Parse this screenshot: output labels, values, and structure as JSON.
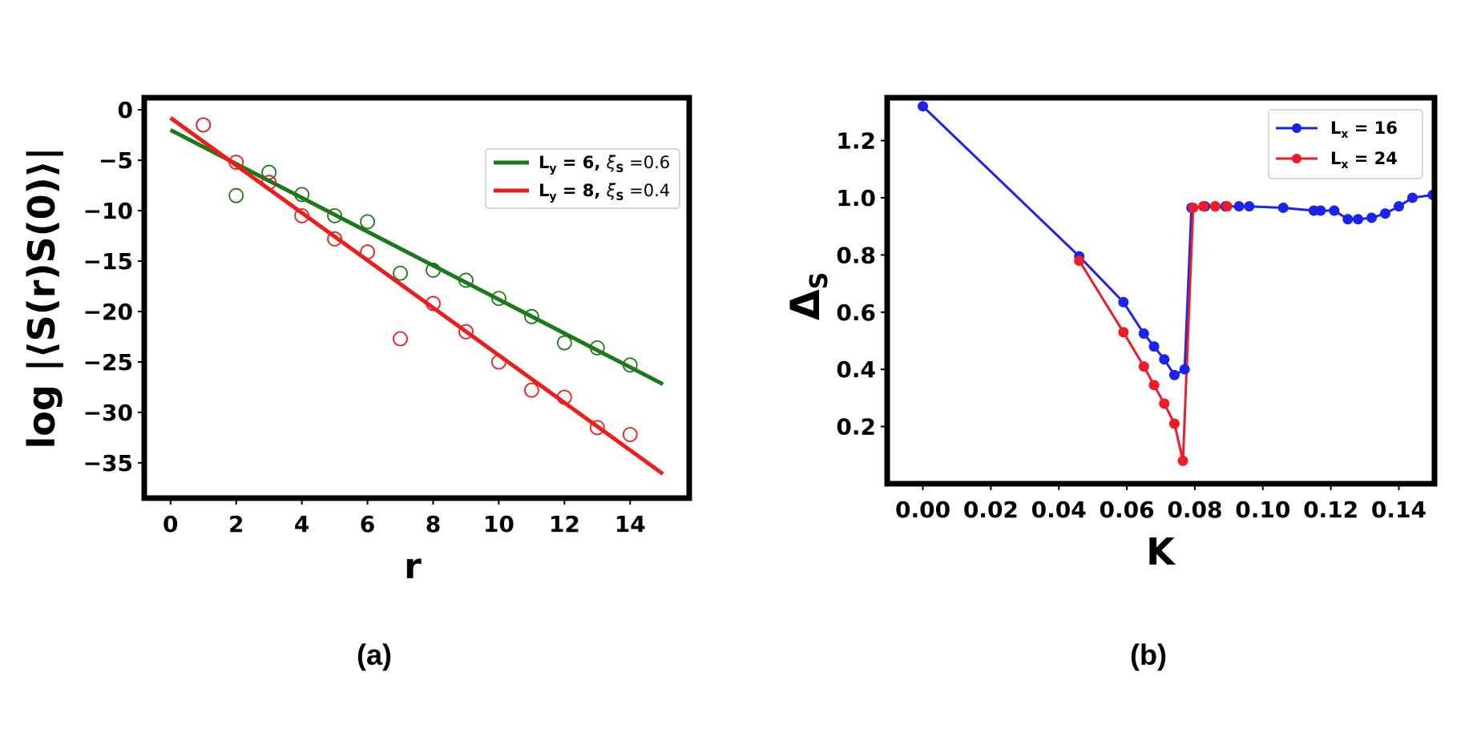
{
  "chart_data": [
    {
      "type": "scatter",
      "panel_label": "(a)",
      "xlabel": "r",
      "ylabel": "log |⟨S(r)S(0)⟩|",
      "xlim": [
        -0.8,
        15.8
      ],
      "ylim": [
        -38.5,
        1.2
      ],
      "xticks": [
        0,
        2,
        4,
        6,
        8,
        10,
        12,
        14
      ],
      "xtick_labels": [
        "0",
        "2",
        "4",
        "6",
        "8",
        "10",
        "12",
        "14"
      ],
      "yticks": [
        0,
        -5,
        -10,
        -15,
        -20,
        -25,
        -30,
        -35
      ],
      "ytick_labels": [
        "0",
        "−5",
        "−10",
        "−15",
        "−20",
        "−25",
        "−30",
        "−35"
      ],
      "grid": false,
      "legend_position": "upper-right",
      "series": [
        {
          "name": "L_y = 6, ξ_S = 0.6",
          "legend_main": "L",
          "legend_sub": "y",
          "legend_eq": " = 6, ",
          "legend_xi": "ξ",
          "legend_xi_sub": "S",
          "legend_val": " =0.6",
          "color": "#1a7a1a",
          "marker": "open-circle",
          "x": [
            1,
            2,
            3,
            4,
            5,
            6,
            7,
            8,
            9,
            10,
            11,
            12,
            13,
            14
          ],
          "y": [
            -1.5,
            -8.5,
            -6.2,
            -8.4,
            -10.5,
            -11.1,
            -16.2,
            -15.9,
            -16.9,
            -18.7,
            -20.5,
            -23.1,
            -23.6,
            -25.3
          ],
          "fit": {
            "x": [
              0,
              15
            ],
            "y": [
              -2.0,
              -27.2
            ]
          }
        },
        {
          "name": "L_y = 8, ξ_S = 0.4",
          "legend_main": "L",
          "legend_sub": "y",
          "legend_eq": " = 8, ",
          "legend_xi": "ξ",
          "legend_xi_sub": "S",
          "legend_val": " =0.4",
          "color": "#ee1c1c",
          "marker": "open-circle",
          "x": [
            1,
            2,
            3,
            4,
            5,
            6,
            7,
            8,
            9,
            10,
            11,
            12,
            13,
            14
          ],
          "y": [
            -1.5,
            -5.2,
            -7.2,
            -10.5,
            -12.8,
            -14.1,
            -22.7,
            -19.2,
            -22.0,
            -25.0,
            -27.8,
            -28.5,
            -31.5,
            -32.2
          ],
          "fit": {
            "x": [
              0,
              15
            ],
            "y": [
              -0.8,
              -36.1
            ]
          }
        }
      ]
    },
    {
      "type": "line",
      "panel_label": "(b)",
      "xlabel": "K",
      "ylabel": "Δ",
      "ylabel_sub": "S",
      "xlim": [
        -0.0105,
        0.1505
      ],
      "ylim": [
        0.0,
        1.35
      ],
      "xticks": [
        0.0,
        0.02,
        0.04,
        0.06,
        0.08,
        0.1,
        0.12,
        0.14
      ],
      "xtick_labels": [
        "0.00",
        "0.02",
        "0.04",
        "0.06",
        "0.08",
        "0.10",
        "0.12",
        "0.14"
      ],
      "yticks": [
        0.2,
        0.4,
        0.6,
        0.8,
        1.0,
        1.2
      ],
      "ytick_labels": [
        "0.2",
        "0.4",
        "0.6",
        "0.8",
        "1.0",
        "1.2"
      ],
      "grid": false,
      "legend_position": "upper-right",
      "series": [
        {
          "name": "L_x = 16",
          "legend_main": "L",
          "legend_sub": "x",
          "legend_eq": " = 16",
          "color": "#1a24ee",
          "marker": "filled-circle",
          "x": [
            0.0,
            0.046,
            0.059,
            0.065,
            0.068,
            0.071,
            0.074,
            0.077,
            0.079,
            0.083,
            0.086,
            0.089,
            0.093,
            0.096,
            0.106,
            0.115,
            0.117,
            0.121,
            0.125,
            0.128,
            0.132,
            0.136,
            0.14,
            0.144,
            0.15
          ],
          "y": [
            1.32,
            0.795,
            0.635,
            0.525,
            0.48,
            0.435,
            0.38,
            0.4,
            0.965,
            0.97,
            0.97,
            0.97,
            0.97,
            0.97,
            0.965,
            0.955,
            0.955,
            0.955,
            0.925,
            0.925,
            0.93,
            0.945,
            0.97,
            1.0,
            1.01
          ]
        },
        {
          "name": "L_x = 24",
          "legend_main": "L",
          "legend_sub": "x",
          "legend_eq": " = 24",
          "color": "#ee1c2a",
          "marker": "filled-circle",
          "x": [
            0.046,
            0.059,
            0.065,
            0.068,
            0.071,
            0.074,
            0.0765,
            0.0795,
            0.0825,
            0.086,
            0.0895
          ],
          "y": [
            0.78,
            0.53,
            0.41,
            0.345,
            0.28,
            0.21,
            0.08,
            0.965,
            0.97,
            0.97,
            0.97
          ]
        }
      ]
    }
  ]
}
